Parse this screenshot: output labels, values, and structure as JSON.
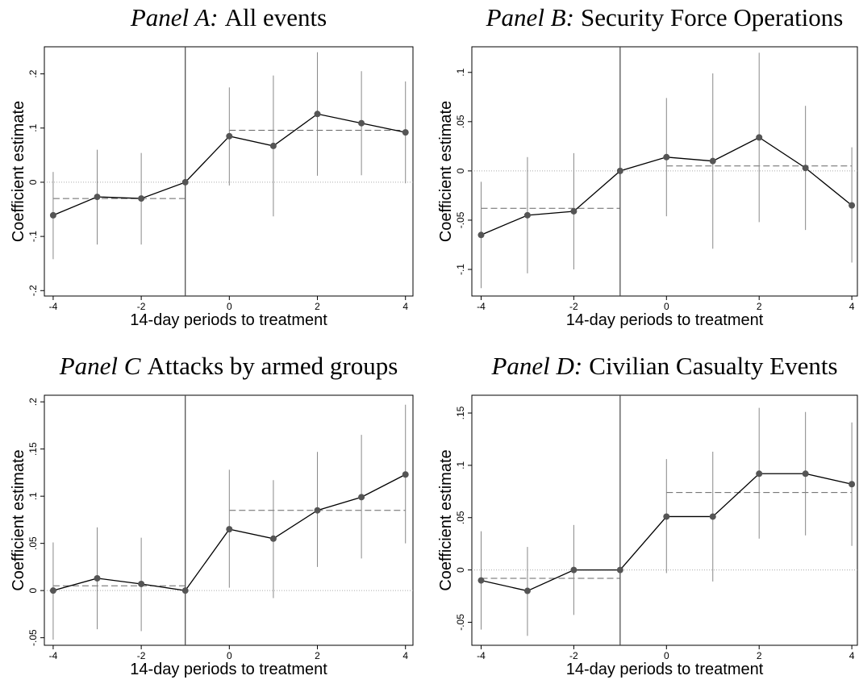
{
  "chart_data": [
    {
      "type": "line",
      "title_prefix": "Panel A:",
      "title": "All events",
      "xlabel": "14-day periods to treatment",
      "ylabel": "Coefficient estimate",
      "x": [
        -4,
        -3,
        -2,
        -1,
        0,
        1,
        2,
        3,
        4
      ],
      "values": [
        -0.061,
        -0.027,
        -0.03,
        0,
        0.085,
        0.067,
        0.126,
        0.109,
        0.092
      ],
      "ci_upper": [
        0.019,
        0.06,
        0.054,
        null,
        0.175,
        0.197,
        0.24,
        0.205,
        0.186
      ],
      "ci_lower": [
        -0.142,
        -0.115,
        -0.115,
        null,
        -0.006,
        -0.063,
        0.012,
        0.013,
        -0.002
      ],
      "pre_mean": -0.03,
      "post_mean": 0.096,
      "treatment_x": -1,
      "reference_y": 0,
      "xlim": [
        -4.2,
        4.17
      ],
      "ylim": [
        -0.21,
        0.25
      ],
      "xticks": [
        -4,
        -2,
        0,
        2,
        4
      ],
      "yticks": [
        {
          "value": -0.2,
          "label": "-.2"
        },
        {
          "value": -0.1,
          "label": "-.1"
        },
        0,
        {
          "value": 0.1,
          "label": ".1"
        },
        {
          "value": 0.2,
          "label": ".2"
        }
      ]
    },
    {
      "type": "line",
      "title_prefix": "Panel B:",
      "title": "Security Force Operations",
      "xlabel": "14-day periods to treatment",
      "ylabel": "Coefficient estimate",
      "x": [
        -4,
        -3,
        -2,
        -1,
        0,
        1,
        2,
        3,
        4
      ],
      "values": [
        -0.065,
        -0.045,
        -0.041,
        0,
        0.014,
        0.01,
        0.034,
        0.003,
        -0.035
      ],
      "ci_upper": [
        -0.011,
        0.014,
        0.018,
        null,
        0.074,
        0.099,
        0.12,
        0.066,
        0.024
      ],
      "ci_lower": [
        -0.119,
        -0.104,
        -0.1,
        null,
        -0.046,
        -0.079,
        -0.052,
        -0.06,
        -0.093
      ],
      "pre_mean": -0.038,
      "post_mean": 0.005,
      "treatment_x": -1,
      "reference_y": 0,
      "xlim": [
        -4.2,
        4.12
      ],
      "ylim": [
        -0.127,
        0.126
      ],
      "xticks": [
        -4,
        -2,
        0,
        2,
        4
      ],
      "yticks": [
        {
          "value": -0.1,
          "label": "-.1"
        },
        {
          "value": -0.05,
          "label": "-.05"
        },
        0,
        {
          "value": 0.05,
          "label": ".05"
        },
        {
          "value": 0.1,
          "label": ".1"
        }
      ]
    },
    {
      "type": "line",
      "title_prefix": "Panel C",
      "title": "Attacks by armed groups",
      "xlabel": "14-day periods to treatment",
      "ylabel": "Coefficient estimate",
      "x": [
        -4,
        -3,
        -2,
        -1,
        0,
        1,
        2,
        3,
        4
      ],
      "values": [
        0,
        0.013,
        0.007,
        0,
        0.065,
        0.055,
        0.085,
        0.099,
        0.123
      ],
      "ci_upper": [
        0.051,
        0.067,
        0.056,
        null,
        0.128,
        0.117,
        0.147,
        0.165,
        0.197
      ],
      "ci_lower": [
        -0.052,
        -0.041,
        -0.043,
        null,
        0.003,
        -0.008,
        0.025,
        0.034,
        0.05
      ],
      "pre_mean": 0.005,
      "post_mean": 0.085,
      "treatment_x": -1,
      "reference_y": 0,
      "xlim": [
        -4.2,
        4.17
      ],
      "ylim": [
        -0.058,
        0.207
      ],
      "xticks": [
        -4,
        -2,
        0,
        2,
        4
      ],
      "yticks": [
        {
          "value": -0.05,
          "label": "-.05"
        },
        0,
        {
          "value": 0.05,
          "label": ".05"
        },
        {
          "value": 0.1,
          "label": ".1"
        },
        {
          "value": 0.15,
          "label": ".15"
        },
        {
          "value": 0.2,
          "label": ".2"
        }
      ]
    },
    {
      "type": "line",
      "title_prefix": "Panel D:",
      "title": "Civilian Casualty Events",
      "xlabel": "14-day periods to treatment",
      "ylabel": "Coefficient estimate",
      "x": [
        -4,
        -3,
        -2,
        -1,
        0,
        1,
        2,
        3,
        4
      ],
      "values": [
        -0.01,
        -0.02,
        0,
        0,
        0.051,
        0.051,
        0.092,
        0.092,
        0.082
      ],
      "ci_upper": [
        0.037,
        0.022,
        0.043,
        null,
        0.106,
        0.113,
        0.155,
        0.151,
        0.141
      ],
      "ci_lower": [
        -0.057,
        -0.063,
        -0.043,
        null,
        -0.003,
        -0.011,
        0.03,
        0.033,
        0.023
      ],
      "pre_mean": -0.008,
      "post_mean": 0.074,
      "treatment_x": -1,
      "reference_y": 0,
      "xlim": [
        -4.2,
        4.12
      ],
      "ylim": [
        -0.072,
        0.167
      ],
      "xticks": [
        -4,
        -2,
        0,
        2,
        4
      ],
      "yticks": [
        {
          "value": -0.05,
          "label": "-.05"
        },
        0,
        {
          "value": 0.05,
          "label": ".05"
        },
        {
          "value": 0.1,
          "label": ".1"
        },
        {
          "value": 0.15,
          "label": ".15"
        }
      ]
    }
  ]
}
